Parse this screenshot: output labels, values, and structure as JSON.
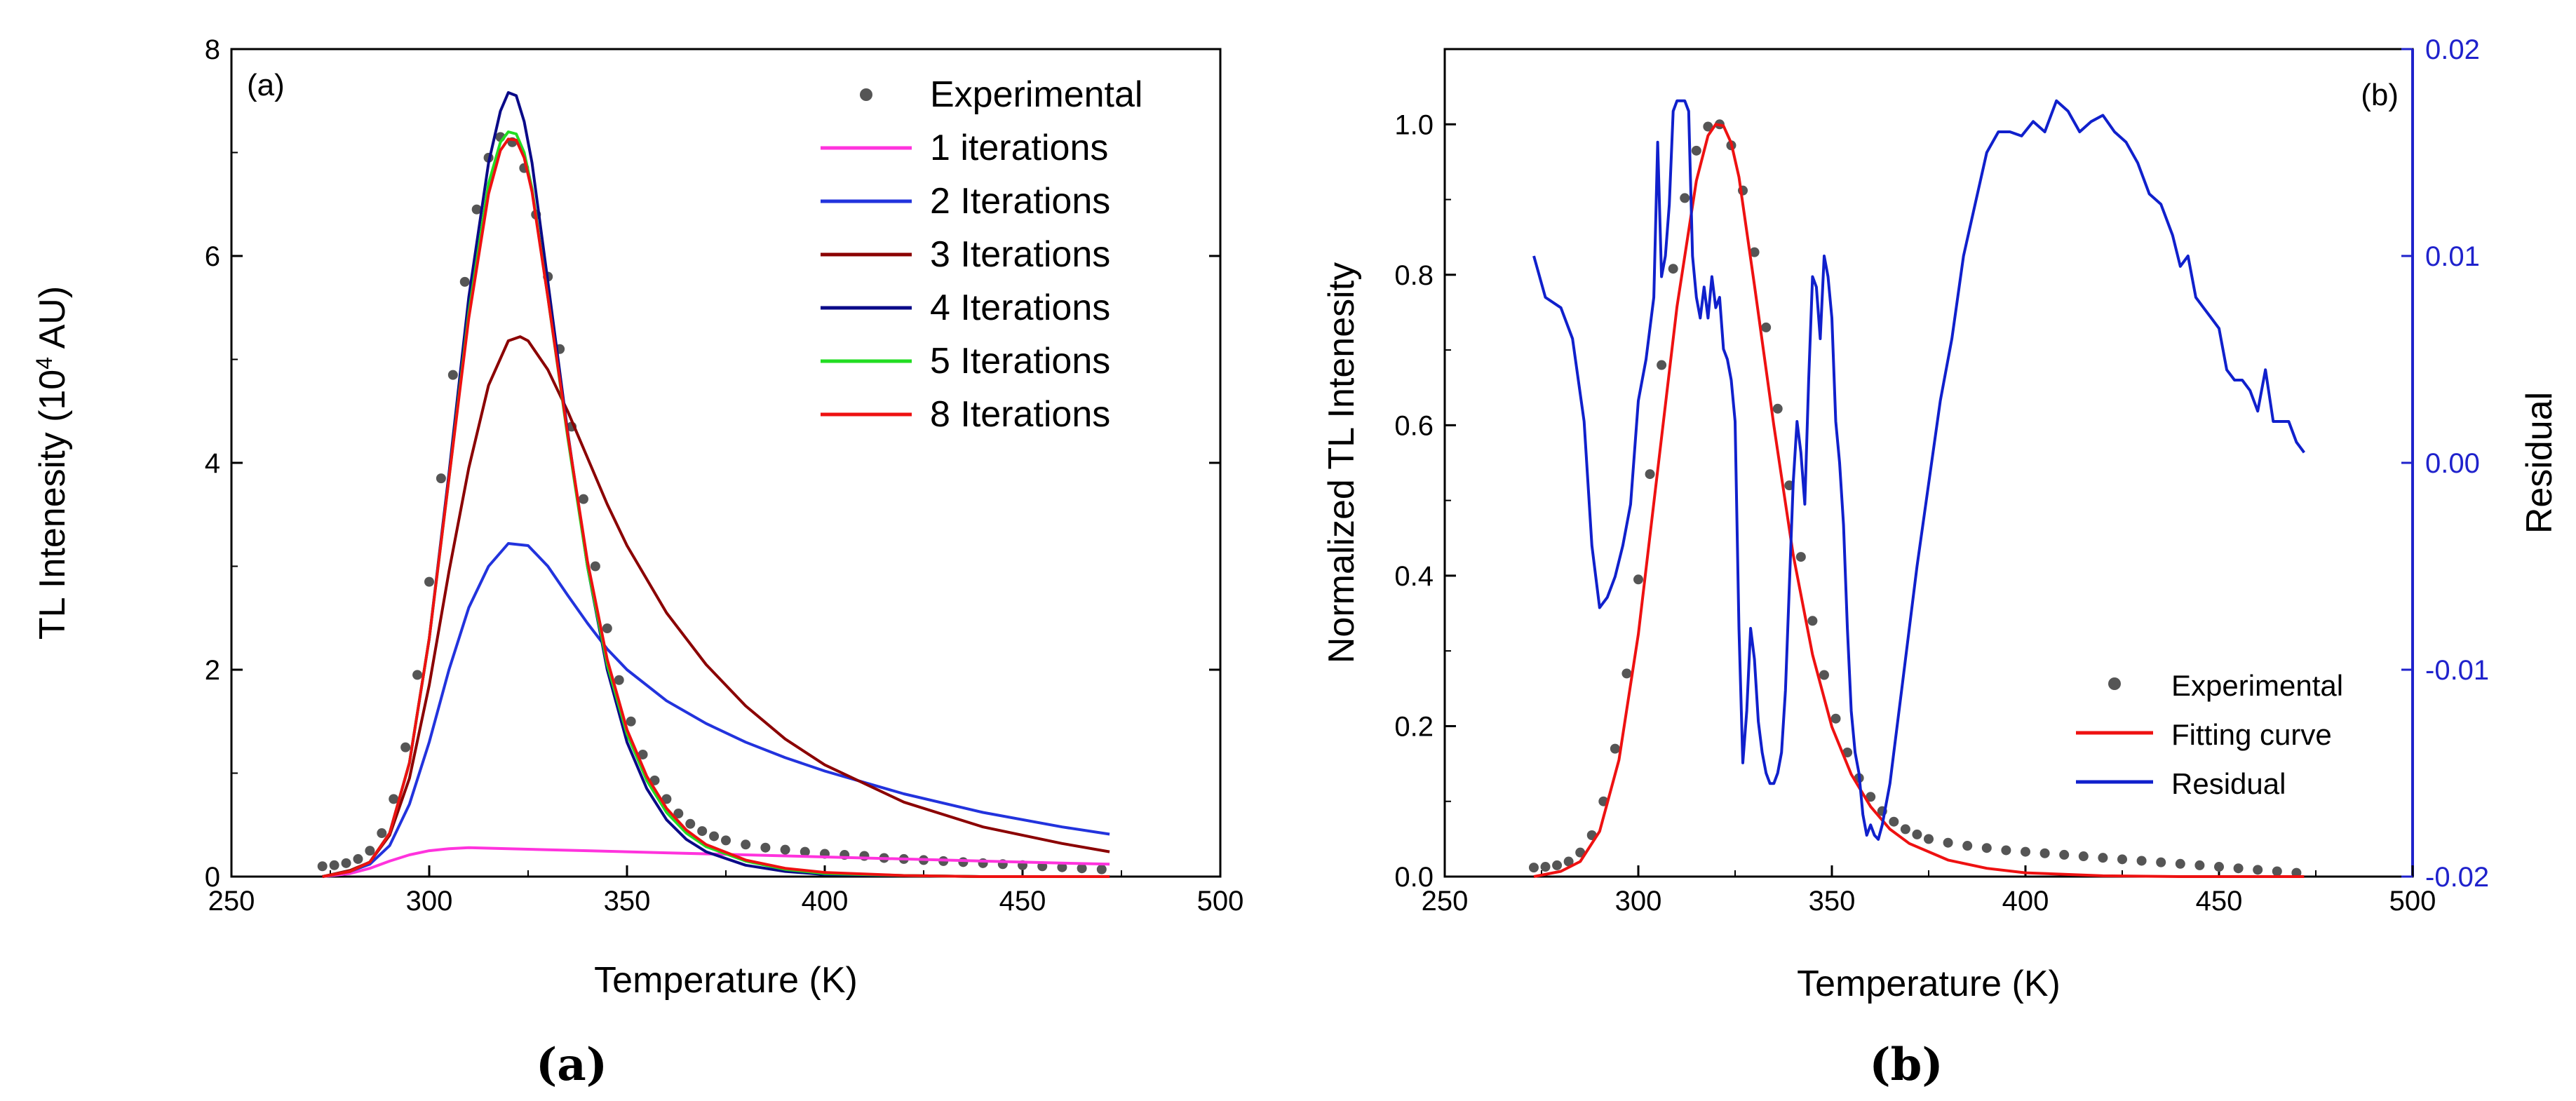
{
  "subfigure_labels": [
    "(a)",
    "(b)"
  ],
  "chart_data": [
    {
      "type": "line",
      "panel_tag": "(a)",
      "xlabel": "Temperature (K)",
      "ylabel": "TL Intenesity (10",
      "ylabel_sup": "4",
      "ylabel_end": " AU)",
      "xlim": [
        250,
        500
      ],
      "ylim": [
        0,
        8
      ],
      "xticks": [
        250,
        300,
        350,
        400,
        450,
        500
      ],
      "yticks": [
        0,
        2,
        4,
        6,
        8
      ],
      "legend_position": "top-right",
      "series": [
        {
          "name": "Experimental",
          "style": "dots",
          "color": "#555555",
          "x": [
            273,
            276,
            279,
            282,
            285,
            288,
            291,
            294,
            297,
            300,
            303,
            306,
            309,
            312,
            315,
            318,
            321,
            324,
            327,
            330,
            333,
            336,
            339,
            342,
            345,
            348,
            351,
            354,
            357,
            360,
            363,
            366,
            369,
            372,
            375,
            380,
            385,
            390,
            395,
            400,
            405,
            410,
            415,
            420,
            425,
            430,
            435,
            440,
            445,
            450,
            455,
            460,
            465,
            470
          ],
          "y": [
            0.1,
            0.11,
            0.13,
            0.17,
            0.25,
            0.42,
            0.75,
            1.25,
            1.95,
            2.85,
            3.85,
            4.85,
            5.75,
            6.45,
            6.95,
            7.15,
            7.1,
            6.85,
            6.4,
            5.8,
            5.1,
            4.35,
            3.65,
            3.0,
            2.4,
            1.9,
            1.5,
            1.18,
            0.93,
            0.75,
            0.61,
            0.51,
            0.44,
            0.39,
            0.35,
            0.31,
            0.28,
            0.26,
            0.24,
            0.22,
            0.21,
            0.2,
            0.18,
            0.17,
            0.16,
            0.15,
            0.14,
            0.13,
            0.12,
            0.11,
            0.1,
            0.09,
            0.08,
            0.07
          ]
        },
        {
          "name": "1 iterations",
          "style": "line",
          "color": "#ff33dd",
          "x": [
            273,
            280,
            285,
            290,
            295,
            300,
            305,
            310,
            320,
            330,
            340,
            350,
            360,
            380,
            400,
            420,
            440,
            460,
            472
          ],
          "y": [
            0.0,
            0.03,
            0.08,
            0.15,
            0.21,
            0.25,
            0.27,
            0.28,
            0.27,
            0.26,
            0.25,
            0.24,
            0.23,
            0.21,
            0.19,
            0.17,
            0.15,
            0.13,
            0.12
          ]
        },
        {
          "name": "2 Iterations",
          "style": "line",
          "color": "#2233dd",
          "x": [
            273,
            280,
            285,
            290,
            295,
            300,
            305,
            310,
            315,
            320,
            325,
            330,
            335,
            340,
            345,
            350,
            360,
            370,
            380,
            390,
            400,
            420,
            440,
            460,
            472
          ],
          "y": [
            0.0,
            0.05,
            0.12,
            0.3,
            0.7,
            1.3,
            2.0,
            2.6,
            3.0,
            3.22,
            3.2,
            3.0,
            2.72,
            2.45,
            2.2,
            2.0,
            1.7,
            1.48,
            1.3,
            1.15,
            1.02,
            0.8,
            0.62,
            0.48,
            0.41
          ]
        },
        {
          "name": "3 Iterations",
          "style": "line",
          "color": "#8b0000",
          "x": [
            273,
            280,
            285,
            290,
            295,
            300,
            305,
            310,
            315,
            320,
            323,
            325,
            330,
            335,
            340,
            345,
            350,
            360,
            370,
            380,
            390,
            400,
            420,
            440,
            460,
            472
          ],
          "y": [
            0.0,
            0.06,
            0.14,
            0.4,
            0.95,
            1.85,
            2.95,
            3.95,
            4.75,
            5.18,
            5.22,
            5.18,
            4.9,
            4.5,
            4.05,
            3.6,
            3.2,
            2.55,
            2.05,
            1.65,
            1.33,
            1.08,
            0.72,
            0.48,
            0.32,
            0.24
          ]
        },
        {
          "name": "4 Iterations",
          "style": "line",
          "color": "#0a0a88",
          "x": [
            273,
            280,
            285,
            290,
            295,
            300,
            305,
            310,
            315,
            318,
            320,
            322,
            324,
            326,
            330,
            335,
            340,
            345,
            350,
            355,
            360,
            365,
            370,
            380,
            390,
            400,
            420,
            440,
            472
          ],
          "y": [
            0.0,
            0.05,
            0.14,
            0.42,
            1.1,
            2.3,
            3.9,
            5.6,
            6.9,
            7.4,
            7.58,
            7.55,
            7.3,
            6.9,
            5.75,
            4.3,
            3.0,
            2.0,
            1.3,
            0.85,
            0.55,
            0.36,
            0.24,
            0.11,
            0.05,
            0.02,
            0.01,
            0.0,
            0.0
          ]
        },
        {
          "name": "5 Iterations",
          "style": "line",
          "color": "#22dd22",
          "x": [
            273,
            280,
            285,
            290,
            295,
            300,
            305,
            310,
            315,
            318,
            320,
            322,
            324,
            326,
            330,
            335,
            340,
            345,
            350,
            355,
            360,
            365,
            370,
            380,
            390,
            400,
            420,
            440,
            472
          ],
          "y": [
            0.0,
            0.05,
            0.14,
            0.42,
            1.1,
            2.3,
            3.85,
            5.45,
            6.7,
            7.1,
            7.2,
            7.18,
            7.0,
            6.65,
            5.6,
            4.25,
            3.0,
            2.05,
            1.38,
            0.93,
            0.62,
            0.42,
            0.29,
            0.15,
            0.07,
            0.03,
            0.01,
            0.0,
            0.0
          ]
        },
        {
          "name": "8 Iterations",
          "style": "line",
          "color": "#ee1111",
          "x": [
            273,
            280,
            285,
            290,
            295,
            300,
            305,
            310,
            315,
            318,
            320,
            322,
            324,
            326,
            330,
            335,
            340,
            345,
            350,
            355,
            360,
            365,
            370,
            380,
            390,
            400,
            420,
            440,
            472
          ],
          "y": [
            0.0,
            0.05,
            0.14,
            0.42,
            1.1,
            2.3,
            3.85,
            5.4,
            6.6,
            7.02,
            7.13,
            7.12,
            6.95,
            6.62,
            5.6,
            4.28,
            3.05,
            2.1,
            1.42,
            0.97,
            0.66,
            0.45,
            0.31,
            0.16,
            0.08,
            0.04,
            0.01,
            0.0,
            0.0
          ]
        }
      ]
    },
    {
      "type": "line",
      "panel_tag": "(b)",
      "xlabel": "Temperature (K)",
      "ylabel": "Normalized TL Intenesity",
      "y2label": "Residual",
      "xlim": [
        250,
        500
      ],
      "ylim": [
        0,
        1.1
      ],
      "y2lim": [
        -0.02,
        0.02
      ],
      "xticks": [
        250,
        300,
        350,
        400,
        450,
        500
      ],
      "yticks": [
        0.0,
        0.2,
        0.4,
        0.6,
        0.8,
        1.0
      ],
      "y2ticks": [
        -0.02,
        -0.01,
        0.0,
        0.01,
        0.02
      ],
      "y2tick_labels": [
        "-0.02",
        "-0.01",
        "0.00",
        "0.01",
        "0.02"
      ],
      "legend_position": "bottom-right",
      "series": [
        {
          "name": "Experimental",
          "style": "dots",
          "color": "#555555",
          "axis": "left",
          "x": [
            273,
            276,
            279,
            282,
            285,
            288,
            291,
            294,
            297,
            300,
            303,
            306,
            309,
            312,
            315,
            318,
            321,
            324,
            327,
            330,
            333,
            336,
            339,
            342,
            345,
            348,
            351,
            354,
            357,
            360,
            363,
            366,
            369,
            372,
            375,
            380,
            385,
            390,
            395,
            400,
            405,
            410,
            415,
            420,
            425,
            430,
            435,
            440,
            445,
            450,
            455,
            460,
            465,
            470
          ],
          "y": [
            0.012,
            0.013,
            0.015,
            0.02,
            0.032,
            0.055,
            0.1,
            0.17,
            0.27,
            0.395,
            0.535,
            0.68,
            0.808,
            0.902,
            0.965,
            0.997,
            1.0,
            0.972,
            0.912,
            0.83,
            0.73,
            0.622,
            0.52,
            0.425,
            0.34,
            0.268,
            0.21,
            0.165,
            0.131,
            0.106,
            0.087,
            0.073,
            0.063,
            0.056,
            0.05,
            0.045,
            0.041,
            0.038,
            0.035,
            0.033,
            0.031,
            0.029,
            0.027,
            0.025,
            0.023,
            0.021,
            0.019,
            0.017,
            0.015,
            0.013,
            0.011,
            0.009,
            0.007,
            0.005
          ]
        },
        {
          "name": "Fitting curve",
          "style": "line",
          "color": "#ee1111",
          "axis": "left",
          "x": [
            273,
            280,
            285,
            290,
            295,
            300,
            305,
            310,
            315,
            318,
            320,
            322,
            324,
            326,
            330,
            335,
            340,
            345,
            350,
            355,
            360,
            365,
            370,
            380,
            390,
            400,
            420,
            440,
            472
          ],
          "y": [
            0.0,
            0.007,
            0.02,
            0.06,
            0.155,
            0.322,
            0.54,
            0.758,
            0.925,
            0.985,
            1.0,
            0.998,
            0.975,
            0.93,
            0.786,
            0.6,
            0.428,
            0.295,
            0.199,
            0.136,
            0.093,
            0.063,
            0.044,
            0.022,
            0.011,
            0.005,
            0.001,
            0.0,
            0.0
          ]
        },
        {
          "name": "Residual",
          "style": "line",
          "color": "#1020cc",
          "axis": "right",
          "x": [
            273,
            276,
            280,
            283,
            286,
            288,
            290,
            292,
            294,
            296,
            298,
            300,
            302,
            304,
            305,
            306,
            307,
            308,
            309,
            310,
            311,
            312,
            313,
            314,
            315,
            316,
            317,
            318,
            319,
            320,
            321,
            322,
            323,
            324,
            325,
            326,
            327,
            328,
            329,
            330,
            331,
            332,
            333,
            334,
            335,
            336,
            337,
            338,
            339,
            340,
            341,
            342,
            343,
            344,
            345,
            346,
            347,
            348,
            349,
            350,
            351,
            352,
            353,
            354,
            355,
            356,
            357,
            358,
            359,
            360,
            361,
            362,
            363,
            364,
            365,
            366,
            368,
            370,
            372,
            375,
            378,
            381,
            384,
            387,
            390,
            393,
            396,
            399,
            402,
            405,
            408,
            411,
            414,
            417,
            420,
            423,
            426,
            429,
            432,
            435,
            438,
            440,
            442,
            444,
            446,
            448,
            450,
            452,
            454,
            456,
            458,
            460,
            462,
            464,
            466,
            468,
            470,
            472
          ],
          "y": [
            0.01,
            0.008,
            0.0075,
            0.006,
            0.002,
            -0.004,
            -0.007,
            -0.0065,
            -0.0055,
            -0.004,
            -0.002,
            0.003,
            0.005,
            0.008,
            0.0155,
            0.009,
            0.01,
            0.0125,
            0.017,
            0.0175,
            0.0175,
            0.0175,
            0.017,
            0.01,
            0.008,
            0.007,
            0.0085,
            0.007,
            0.009,
            0.0075,
            0.008,
            0.0055,
            0.005,
            0.004,
            0.002,
            -0.008,
            -0.0145,
            -0.012,
            -0.008,
            -0.0095,
            -0.0125,
            -0.014,
            -0.015,
            -0.0155,
            -0.0155,
            -0.015,
            -0.014,
            -0.011,
            -0.006,
            -0.001,
            0.002,
            0.0005,
            -0.002,
            0.004,
            0.009,
            0.0085,
            0.006,
            0.01,
            0.009,
            0.007,
            0.002,
            0.0,
            -0.003,
            -0.008,
            -0.012,
            -0.014,
            -0.015,
            -0.017,
            -0.018,
            -0.0175,
            -0.018,
            -0.0182,
            -0.0175,
            -0.0165,
            -0.0155,
            -0.014,
            -0.011,
            -0.008,
            -0.005,
            -0.001,
            0.003,
            0.006,
            0.01,
            0.0125,
            0.015,
            0.016,
            0.016,
            0.0158,
            0.0165,
            0.016,
            0.0175,
            0.017,
            0.016,
            0.0165,
            0.0168,
            0.016,
            0.0155,
            0.0145,
            0.013,
            0.0125,
            0.011,
            0.0095,
            0.01,
            0.008,
            0.0075,
            0.007,
            0.0065,
            0.0045,
            0.004,
            0.004,
            0.0035,
            0.0025,
            0.0045,
            0.002,
            0.002,
            0.002,
            0.001,
            0.0005
          ]
        }
      ]
    }
  ]
}
